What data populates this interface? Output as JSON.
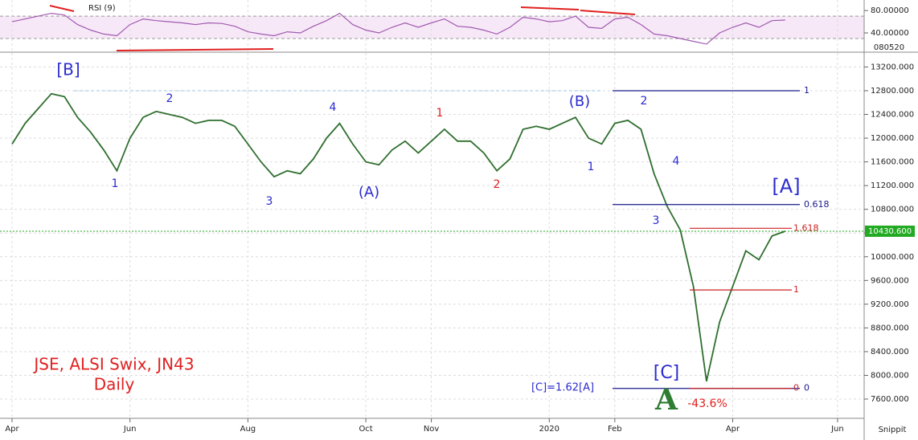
{
  "chart_data": [
    {
      "type": "line",
      "title": "JSE, ALSI Swix, JN43",
      "subtitle": "Daily",
      "categories": [
        "Apr",
        null,
        null,
        null,
        null,
        null,
        null,
        null,
        null,
        "Jun",
        null,
        null,
        null,
        null,
        null,
        null,
        null,
        null,
        "Aug",
        null,
        null,
        null,
        null,
        null,
        null,
        null,
        null,
        "Oct",
        null,
        null,
        null,
        null,
        "Nov",
        null,
        null,
        null,
        null,
        null,
        null,
        null,
        null,
        "2020",
        null,
        null,
        null,
        null,
        "Feb",
        null,
        null,
        null,
        null,
        null,
        null,
        null,
        null,
        "Apr",
        null,
        null,
        null,
        null,
        null,
        null,
        null,
        "Jun"
      ],
      "values": [
        11900,
        12250,
        12500,
        12750,
        12700,
        12350,
        12100,
        11800,
        11450,
        12000,
        12350,
        12450,
        12400,
        12350,
        12250,
        12300,
        12300,
        12200,
        11900,
        11600,
        11350,
        11450,
        11400,
        11650,
        12000,
        12250,
        11900,
        11600,
        11550,
        11800,
        11950,
        11750,
        11950,
        12150,
        11950,
        11950,
        11750,
        11450,
        11650,
        12150,
        12200,
        12150,
        12250,
        12350,
        12000,
        11900,
        12250,
        12300,
        12150,
        11400,
        10850,
        10450,
        9500,
        7900,
        8900,
        9500,
        10100,
        9950,
        10350,
        10430.6,
        null,
        null,
        null,
        null
      ],
      "color": "#2f6f2f",
      "ylim": [
        7289,
        13409
      ],
      "yticks": [
        {
          "value": 7600,
          "label": "7600.000"
        },
        {
          "value": 8000,
          "label": "8000.000"
        },
        {
          "value": 8400,
          "label": "8400.000"
        },
        {
          "value": 8800,
          "label": "8800.000"
        },
        {
          "value": 9200,
          "label": "9200.000"
        },
        {
          "value": 9600,
          "label": "9600.000"
        },
        {
          "value": 10000,
          "label": "10000.000"
        },
        {
          "value": 10400,
          "label": "10400.000"
        },
        {
          "value": 10800,
          "label": "10800.000"
        },
        {
          "value": 11200,
          "label": "11200.000"
        },
        {
          "value": 11600,
          "label": "11600.000"
        },
        {
          "value": 12000,
          "label": "12000.000"
        },
        {
          "value": 12400,
          "label": "12400.000"
        },
        {
          "value": 12800,
          "label": "12800.000"
        },
        {
          "value": 13200,
          "label": "13200.000"
        }
      ],
      "grid": true,
      "last_price": {
        "value": 10430.6,
        "label": "10430.600",
        "color": "#22aa22"
      },
      "levels": [
        {
          "value": 12800,
          "label": "1",
          "color": "#1a1a8c"
        },
        {
          "value": 10880,
          "label": "0.618",
          "color": "#1a1a8c"
        },
        {
          "value": 10480,
          "label": "1.618",
          "color": "#cc2222"
        },
        {
          "value": 9440,
          "label": "1",
          "color": "#cc2222"
        },
        {
          "value": 7780,
          "label": "0",
          "color": "#1a1a8c"
        },
        {
          "value": 7780,
          "label": "0",
          "color": "#cc2222"
        }
      ],
      "annotations": [
        {
          "text": "[B]",
          "color": "#2b2bd0"
        },
        {
          "text": "2",
          "color": "#2b2bd0"
        },
        {
          "text": "1",
          "color": "#2b2bd0"
        },
        {
          "text": "3",
          "color": "#2b2bd0"
        },
        {
          "text": "4",
          "color": "#2b2bd0"
        },
        {
          "text": "(A)",
          "color": "#2b2bd0"
        },
        {
          "text": "1",
          "color": "#e02020"
        },
        {
          "text": "2",
          "color": "#e02020"
        },
        {
          "text": "(B)",
          "color": "#2b2bd0"
        },
        {
          "text": "1",
          "color": "#2b2bd0"
        },
        {
          "text": "2",
          "color": "#2b2bd0"
        },
        {
          "text": "4",
          "color": "#2b2bd0"
        },
        {
          "text": "3",
          "color": "#2b2bd0"
        },
        {
          "text": "[A]",
          "color": "#2b2bd0"
        },
        {
          "text": "[C]",
          "color": "#2b2bd0"
        },
        {
          "text": "[C]=1.62[A]",
          "color": "#2b2bd0"
        },
        {
          "text": "-43.6%",
          "color": "#e02020"
        },
        {
          "text": "A",
          "color": "#2e7d32"
        }
      ],
      "footer": "Snippit"
    },
    {
      "type": "line",
      "title": "RSI (9)",
      "values": [
        60,
        65,
        70,
        75,
        72,
        55,
        45,
        38,
        35,
        55,
        65,
        62,
        60,
        58,
        55,
        58,
        57,
        52,
        42,
        38,
        35,
        42,
        40,
        52,
        62,
        75,
        55,
        45,
        40,
        50,
        58,
        50,
        58,
        65,
        52,
        50,
        45,
        38,
        50,
        68,
        65,
        60,
        62,
        70,
        50,
        48,
        65,
        68,
        55,
        38,
        35,
        30,
        25,
        20,
        40,
        50,
        58,
        50,
        62,
        63,
        null,
        null,
        null,
        null
      ],
      "color": "#a05ab0",
      "ylim": [
        7,
        96
      ],
      "yticks": [
        {
          "value": 80,
          "label": "80.00000"
        },
        {
          "value": 40,
          "label": "40.00000"
        }
      ],
      "bands": [
        30,
        70
      ],
      "date_label": "080520"
    }
  ]
}
